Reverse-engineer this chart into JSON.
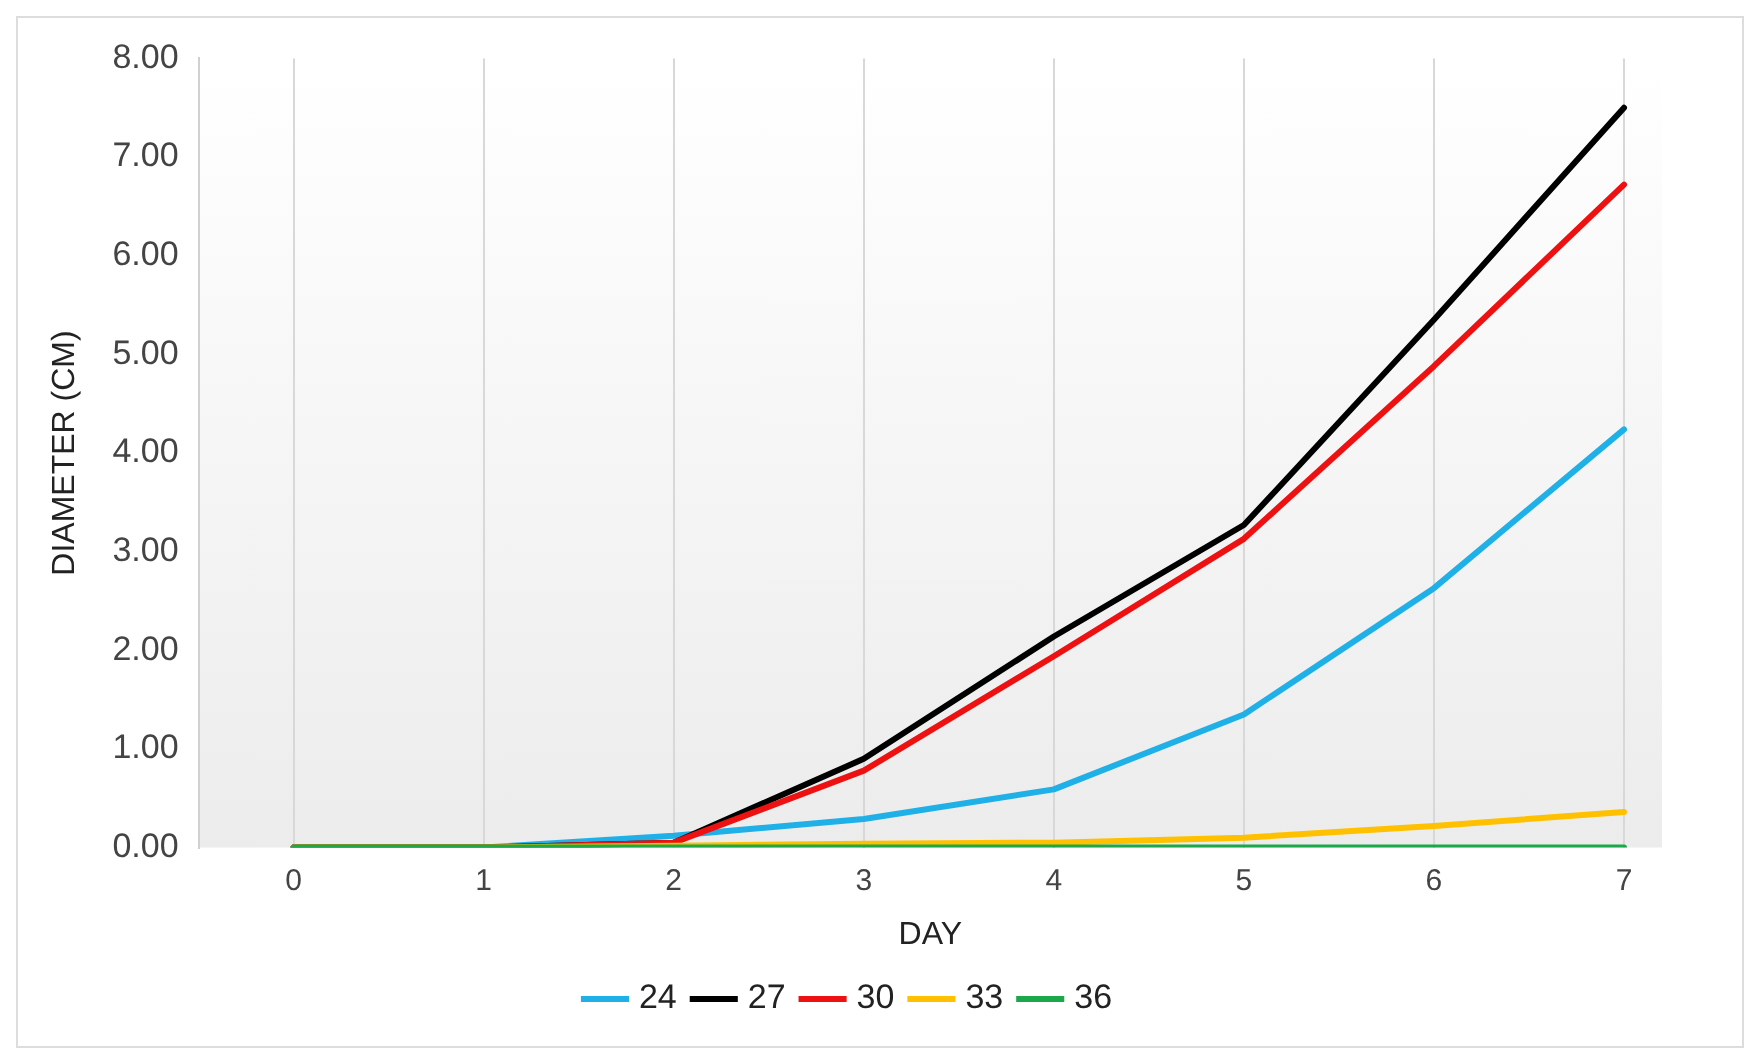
{
  "chart_data": {
    "type": "line",
    "xlabel": "DAY",
    "ylabel": "DIAMETER (CM)",
    "x": [
      0,
      1,
      2,
      3,
      4,
      5,
      6,
      7
    ],
    "xlim": [
      -0.5,
      7.2
    ],
    "xticks": [
      0,
      1,
      2,
      3,
      4,
      5,
      6,
      7
    ],
    "ylim": [
      0,
      8
    ],
    "yticks": [
      {
        "value": 0,
        "label": "0.00"
      },
      {
        "value": 1,
        "label": "1.00"
      },
      {
        "value": 2,
        "label": "2.00"
      },
      {
        "value": 3,
        "label": "3.00"
      },
      {
        "value": 4,
        "label": "4.00"
      },
      {
        "value": 5,
        "label": "5.00"
      },
      {
        "value": 6,
        "label": "6.00"
      },
      {
        "value": 7,
        "label": "7.00"
      },
      {
        "value": 8,
        "label": "8.00"
      }
    ],
    "grid": "x",
    "legend": "bottom",
    "marker": "none",
    "line_style": "solid",
    "series": [
      {
        "name": "24",
        "color": "#1fb0e8",
        "values": [
          0,
          0,
          0.12,
          0.29,
          0.59,
          1.35,
          2.63,
          4.24
        ]
      },
      {
        "name": "27",
        "color": "#000000",
        "values": [
          0,
          0,
          0.05,
          0.9,
          2.14,
          3.27,
          5.35,
          7.5
        ]
      },
      {
        "name": "30",
        "color": "#ee1111",
        "values": [
          0,
          0,
          0.05,
          0.78,
          1.94,
          3.13,
          4.88,
          6.72
        ]
      },
      {
        "name": "33",
        "color": "#ffc000",
        "values": [
          0,
          0,
          0.02,
          0.04,
          0.05,
          0.1,
          0.22,
          0.36
        ]
      },
      {
        "name": "36",
        "color": "#1aa84a",
        "values": [
          0,
          0,
          0,
          0,
          0,
          0,
          0,
          0
        ]
      }
    ]
  }
}
